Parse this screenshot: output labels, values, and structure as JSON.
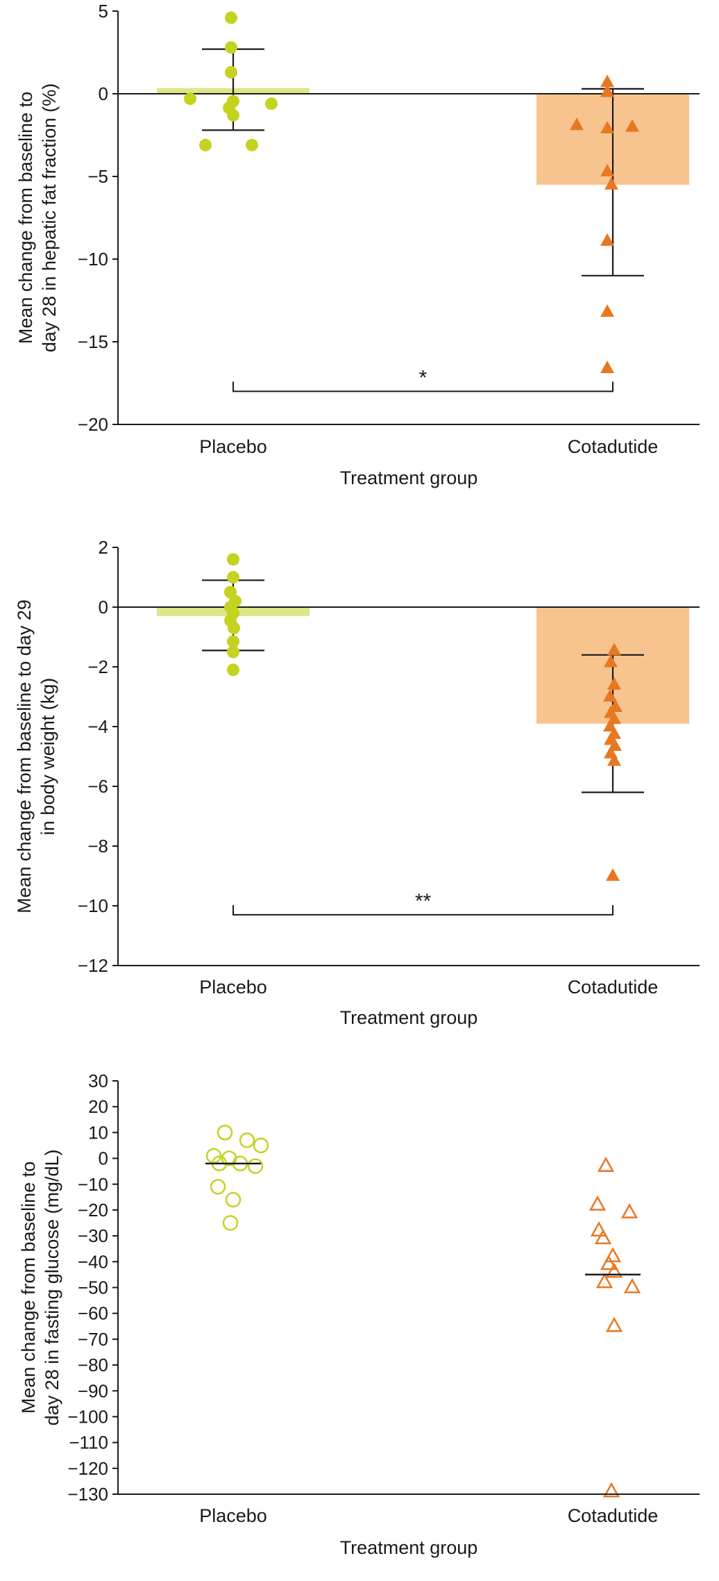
{
  "figure": {
    "background": "#ffffff",
    "ink_color": "#1a1a1a"
  },
  "chart_data": [
    {
      "type": "scatter",
      "subtype": "dot-plot-with-mean-bars",
      "xlabel": "Treatment group",
      "ylabel_lines": [
        "Mean change from baseline to",
        "day 28 in hepatic fat fraction (%)"
      ],
      "ylim": [
        -20,
        5
      ],
      "yticks": [
        [
          5,
          "5"
        ],
        [
          0,
          "0"
        ],
        [
          -5,
          "−5"
        ],
        [
          -10,
          "−10"
        ],
        [
          -15,
          "−15"
        ],
        [
          -20,
          "−20"
        ]
      ],
      "zero_line": true,
      "significance": {
        "label": "*",
        "y": -18
      },
      "groups": [
        {
          "id": "placebo",
          "label": "Placebo",
          "marker": "circle",
          "marker_style": "filled",
          "color": "#c3d320",
          "bar": {
            "value": 0.35,
            "color": "#dfe687"
          },
          "error_bar": {
            "high": 2.7,
            "low": -2.2
          },
          "points": [
            4.6,
            2.8,
            1.3,
            -0.3,
            -0.45,
            -0.6,
            -0.85,
            -1.3,
            -3.1,
            -3.1
          ],
          "offsets": [
            -3,
            -3,
            -3,
            -62,
            0,
            55,
            -6,
            0,
            -40,
            27
          ]
        },
        {
          "id": "cotadutide",
          "label": "Cotadutide",
          "marker": "triangle",
          "marker_style": "filled",
          "color": "#e87722",
          "bar": {
            "value": -5.5,
            "color": "#f7c48f"
          },
          "error_bar": {
            "high": 0.3,
            "low": -11
          },
          "points": [
            0.7,
            0.1,
            -1.9,
            -2.1,
            -2.0,
            -4.7,
            -5.5,
            -8.9,
            -13.2,
            -16.6
          ],
          "offsets": [
            -8,
            -8,
            -52,
            -8,
            28,
            -8,
            -2,
            -8,
            -8,
            -8
          ]
        }
      ]
    },
    {
      "type": "scatter",
      "subtype": "dot-plot-with-mean-bars",
      "xlabel": "Treatment group",
      "ylabel_lines": [
        "Mean change from baseline to day 29",
        "in body weight (kg)"
      ],
      "ylim": [
        -12,
        2
      ],
      "yticks": [
        [
          2,
          "2"
        ],
        [
          0,
          "0"
        ],
        [
          -2,
          "−2"
        ],
        [
          -4,
          "−4"
        ],
        [
          -6,
          "−6"
        ],
        [
          -8,
          "−8"
        ],
        [
          -10,
          "−10"
        ],
        [
          -12,
          "−12"
        ]
      ],
      "zero_line": true,
      "significance": {
        "label": "**",
        "y": -10.3
      },
      "groups": [
        {
          "id": "placebo",
          "label": "Placebo",
          "marker": "circle",
          "marker_style": "filled",
          "color": "#c3d320",
          "bar": {
            "value": -0.3,
            "color": "#dfe687"
          },
          "error_bar": {
            "high": 0.9,
            "low": -1.45
          },
          "points": [
            1.6,
            1.0,
            0.5,
            0.2,
            0.0,
            -0.2,
            -0.45,
            -0.7,
            -1.15,
            -1.5,
            -2.1
          ],
          "offsets": [
            0,
            0,
            -4,
            3,
            -4,
            0,
            -4,
            1,
            0,
            0,
            0
          ]
        },
        {
          "id": "cotadutide",
          "label": "Cotadutide",
          "marker": "triangle",
          "marker_style": "filled",
          "color": "#e87722",
          "bar": {
            "value": -3.9,
            "color": "#f7c48f"
          },
          "error_bar": {
            "high": -1.6,
            "low": -6.2
          },
          "points": [
            -1.45,
            -1.85,
            -2.6,
            -3.0,
            -3.35,
            -3.55,
            -3.75,
            -4.0,
            -4.25,
            -4.45,
            -4.65,
            -4.9,
            -5.15,
            -9.0
          ],
          "offsets": [
            2,
            -3,
            2,
            -4,
            4,
            -3,
            2,
            -4,
            2,
            -3,
            3,
            -3,
            2,
            0
          ]
        }
      ]
    },
    {
      "type": "scatter",
      "subtype": "dot-plot-with-mean-lines",
      "xlabel": "Treatment group",
      "ylabel_lines": [
        "Mean change from baseline to",
        "day 28 in fasting glucose (mg/dL)"
      ],
      "ylim": [
        -130,
        30
      ],
      "yticks": [
        [
          30,
          "30"
        ],
        [
          20,
          "20"
        ],
        [
          10,
          "10"
        ],
        [
          0,
          "0"
        ],
        [
          -10,
          "−10"
        ],
        [
          -20,
          "−20"
        ],
        [
          -30,
          "−30"
        ],
        [
          -40,
          "−40"
        ],
        [
          -50,
          "−50"
        ],
        [
          -60,
          "−60"
        ],
        [
          -70,
          "−70"
        ],
        [
          -80,
          "−80"
        ],
        [
          -90,
          "−90"
        ],
        [
          -100,
          "−100"
        ],
        [
          -110,
          "−110"
        ],
        [
          -120,
          "−120"
        ],
        [
          -130,
          "−130"
        ]
      ],
      "zero_line": false,
      "significance": null,
      "groups": [
        {
          "id": "placebo",
          "label": "Placebo",
          "marker": "circle",
          "marker_style": "open",
          "color": "#c3d320",
          "mean_line": -2,
          "points": [
            10,
            7,
            5,
            1,
            0,
            -2,
            -2,
            -3,
            -11,
            -16,
            -25
          ],
          "offsets": [
            -12,
            20,
            40,
            -28,
            -6,
            -20,
            10,
            32,
            -22,
            0,
            -4
          ]
        },
        {
          "id": "cotadutide",
          "label": "Cotadutide",
          "marker": "triangle",
          "marker_style": "open",
          "color": "#e87722",
          "mean_line": -45,
          "points": [
            -3,
            -18,
            -21,
            -28,
            -31,
            -38,
            -41,
            -44,
            -48,
            -50,
            -65,
            -129
          ],
          "offsets": [
            -10,
            -22,
            24,
            -20,
            -14,
            0,
            -6,
            2,
            -12,
            28,
            2,
            -2
          ]
        }
      ]
    }
  ]
}
